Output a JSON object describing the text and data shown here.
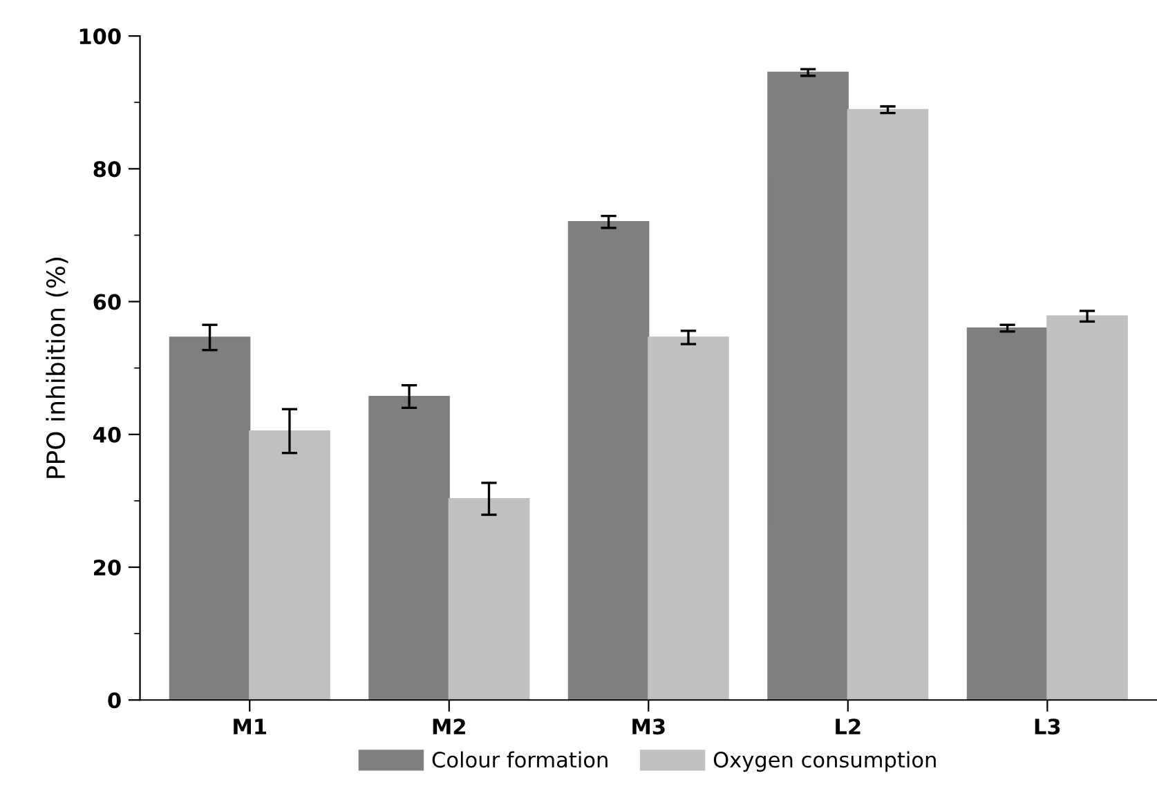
{
  "chart_data": {
    "type": "bar",
    "ylabel": "PPO inhibition (%)",
    "categories": [
      "M1",
      "M2",
      "M3",
      "L2",
      "L3"
    ],
    "series": [
      {
        "name": "Colour formation",
        "color": "#7f7f7f",
        "values": [
          54.6,
          45.7,
          72.0,
          94.5,
          56.0
        ],
        "errors": [
          1.9,
          1.7,
          0.9,
          0.5,
          0.5
        ]
      },
      {
        "name": "Oxygen consumption",
        "color": "#c0c0c0",
        "values": [
          40.5,
          30.3,
          54.6,
          88.9,
          57.8
        ],
        "errors": [
          3.3,
          2.4,
          1.0,
          0.5,
          0.8
        ]
      }
    ],
    "ylim": [
      0,
      100
    ],
    "yticks": [
      0,
      20,
      40,
      60,
      80,
      100
    ],
    "grid": false,
    "legend": "bottom"
  }
}
